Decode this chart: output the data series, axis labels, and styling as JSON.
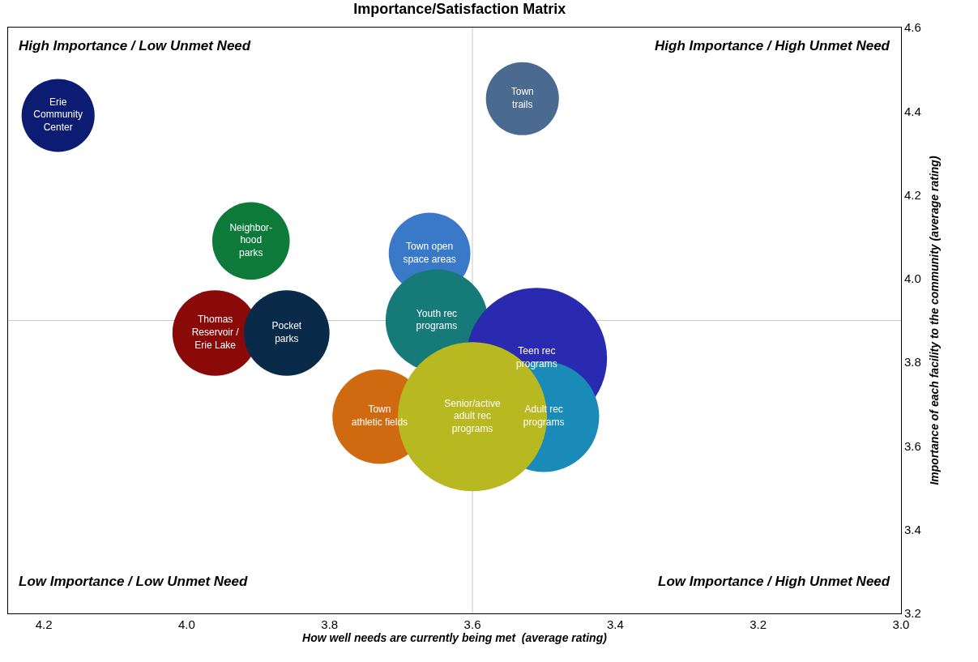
{
  "chart_data": {
    "type": "bubble",
    "title": "Importance/Satisfaction Matrix",
    "xlabel": "How well needs are currently being met  (average rating)",
    "ylabel": "Importance of each facility to the community (average rating)",
    "xlim": [
      4.25,
      3.0
    ],
    "xticks": [
      {
        "value": 4.2,
        "label": "4.2"
      },
      {
        "value": 4.0,
        "label": "4.0"
      },
      {
        "value": 3.8,
        "label": "3.8"
      },
      {
        "value": 3.6,
        "label": "3.6"
      },
      {
        "value": 3.4,
        "label": "3.4"
      },
      {
        "value": 3.2,
        "label": "3.2"
      },
      {
        "value": 3.0,
        "label": "3.0"
      }
    ],
    "ylim": [
      3.2,
      4.6
    ],
    "yticks": [
      {
        "value": 3.2,
        "label": "3.2"
      },
      {
        "value": 3.4,
        "label": "3.4"
      },
      {
        "value": 3.6,
        "label": "3.6"
      },
      {
        "value": 3.8,
        "label": "3.8"
      },
      {
        "value": 4.0,
        "label": "4.0"
      },
      {
        "value": 4.2,
        "label": "4.2"
      },
      {
        "value": 4.4,
        "label": "4.4"
      },
      {
        "value": 4.6,
        "label": "4.6"
      }
    ],
    "grid": false,
    "legend": false,
    "ref_lines": [
      {
        "axis": "x",
        "value": 3.6,
        "color": "#c8c8c8"
      },
      {
        "axis": "y",
        "value": 3.9,
        "color": "#c8c8c8"
      }
    ],
    "annotations": [
      "High Importance / Low Unmet Need",
      "High Importance / High Unmet Need",
      "Low Importance / Low Unmet Need",
      "Low Importance / High Unmet Need"
    ],
    "series": [
      {
        "name": "Erie\nCommunity\nCenter",
        "color": "#0c1c72",
        "x": [
          4.18
        ],
        "values": [
          4.39
        ],
        "sizes": [
          0.24
        ]
      },
      {
        "name": "Town\ntrails",
        "color": "#4a6a90",
        "x": [
          3.53
        ],
        "values": [
          4.43
        ],
        "sizes": [
          0.24
        ]
      },
      {
        "name": "Neighbor-\nhood\nparks",
        "color": "#0e7a3a",
        "x": [
          3.91
        ],
        "values": [
          4.09
        ],
        "sizes": [
          0.27
        ]
      },
      {
        "name": "Town open\nspace areas",
        "color": "#3a78c8",
        "x": [
          3.66
        ],
        "values": [
          4.06
        ],
        "sizes": [
          0.3
        ]
      },
      {
        "name": "Youth rec\nprograms",
        "color": "#157a78",
        "x": [
          3.65
        ],
        "values": [
          3.9
        ],
        "sizes": [
          0.47
        ]
      },
      {
        "name": "Thomas\nReservoir /\nErie Lake",
        "color": "#8a0a0a",
        "x": [
          3.96
        ],
        "values": [
          3.87
        ],
        "sizes": [
          0.33
        ]
      },
      {
        "name": "Pocket\nparks",
        "color": "#0a2a4a",
        "x": [
          3.86
        ],
        "values": [
          3.87
        ],
        "sizes": [
          0.33
        ]
      },
      {
        "name": "Teen rec\nprograms",
        "color": "#2a2ab0",
        "x": [
          3.51
        ],
        "values": [
          3.81
        ],
        "sizes": [
          0.89
        ]
      },
      {
        "name": "Adult rec\nprograms",
        "color": "#1a8ab8",
        "x": [
          3.5
        ],
        "values": [
          3.67
        ],
        "sizes": [
          0.55
        ]
      },
      {
        "name": "Town\nathletic fields",
        "color": "#d06a10",
        "x": [
          3.73
        ],
        "values": [
          3.67
        ],
        "sizes": [
          0.4
        ]
      },
      {
        "name": "Senior/active\nadult rec\nprograms",
        "color": "#b8b820",
        "x": [
          3.6
        ],
        "values": [
          3.67
        ],
        "sizes": [
          1.0
        ]
      }
    ]
  }
}
